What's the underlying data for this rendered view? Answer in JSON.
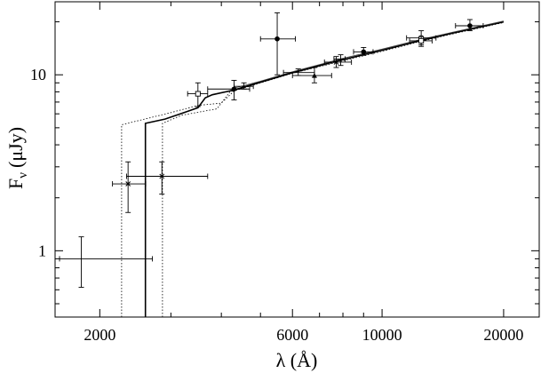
{
  "chart_data": {
    "type": "scatter",
    "xlabel": "λ (Å)",
    "ylabel": "F",
    "ylabel_sub": "ν",
    "ylabel_unit": "(μJy)",
    "x_scale": "log",
    "y_scale": "log",
    "xlim": [
      1550,
      24500
    ],
    "ylim": [
      0.42,
      26
    ],
    "xticks": [
      2000,
      6000,
      10000,
      20000
    ],
    "xtick_labels": [
      "2000",
      "6000",
      "10000",
      "20000"
    ],
    "yticks": [
      1,
      10
    ],
    "ytick_labels": [
      "1",
      "10"
    ],
    "grid": false,
    "points": [
      {
        "marker": "none",
        "x": 1800,
        "y": 0.9,
        "xerr": [
          1590,
          2700
        ],
        "yerr": [
          0.62,
          1.2
        ]
      },
      {
        "marker": "cross",
        "x": 2350,
        "y": 2.4,
        "xerr": [
          2150,
          2600
        ],
        "yerr": [
          1.65,
          3.2
        ]
      },
      {
        "marker": "cross",
        "x": 2850,
        "y": 2.65,
        "xerr": [
          2330,
          3700
        ],
        "yerr": [
          2.1,
          3.2
        ]
      },
      {
        "marker": "square",
        "x": 3500,
        "y": 7.8,
        "xerr": [
          3300,
          3700
        ],
        "yerr": [
          6.6,
          9.0
        ]
      },
      {
        "marker": "filled",
        "x": 4300,
        "y": 8.3,
        "xerr": [
          3700,
          4700
        ],
        "yerr": [
          7.2,
          9.3
        ]
      },
      {
        "marker": "none",
        "x": 4550,
        "y": 8.6,
        "xerr": [
          4300,
          4800
        ],
        "yerr": [
          8.3,
          9.0
        ]
      },
      {
        "marker": "filled",
        "x": 5500,
        "y": 16.0,
        "xerr": [
          5000,
          6100
        ],
        "yerr": [
          10.0,
          22.5
        ]
      },
      {
        "marker": "none",
        "x": 6200,
        "y": 10.3,
        "xerr": [
          5700,
          6800
        ],
        "yerr": [
          9.9,
          10.8
        ]
      },
      {
        "marker": "triangle",
        "x": 6800,
        "y": 9.9,
        "xerr": [
          6000,
          7500
        ],
        "yerr": [
          9.0,
          11.0
        ]
      },
      {
        "marker": "cross",
        "x": 7700,
        "y": 11.8,
        "xerr": [
          7200,
          8400
        ],
        "yerr": [
          11.0,
          12.7
        ]
      },
      {
        "marker": "none",
        "x": 7900,
        "y": 12.3,
        "xerr": [
          7600,
          8100
        ],
        "yerr": [
          11.3,
          13.0
        ]
      },
      {
        "marker": "filled",
        "x": 9000,
        "y": 13.5,
        "xerr": [
          8500,
          9500
        ],
        "yerr": [
          12.9,
          14.3
        ]
      },
      {
        "marker": "circle",
        "x": 12500,
        "y": 16.2,
        "xerr": [
          11500,
          13600
        ],
        "yerr": [
          14.5,
          17.8
        ]
      },
      {
        "marker": "square",
        "x": 12500,
        "y": 15.6,
        "xerr": [
          11700,
          13300
        ],
        "yerr": [
          14.8,
          16.5
        ]
      },
      {
        "marker": "filled",
        "x": 16500,
        "y": 19.0,
        "xerr": [
          15200,
          17800
        ],
        "yerr": [
          17.8,
          20.6
        ]
      }
    ],
    "series": [
      {
        "style": "solid",
        "points": [
          [
            2595,
            0.42
          ],
          [
            2595,
            5.3
          ],
          [
            2900,
            5.6
          ],
          [
            3300,
            6.2
          ],
          [
            3500,
            6.5
          ],
          [
            3650,
            7.4
          ],
          [
            3800,
            7.7
          ],
          [
            4300,
            8.2
          ],
          [
            5000,
            9.1
          ],
          [
            6000,
            10.3
          ],
          [
            7000,
            11.3
          ],
          [
            8000,
            12.2
          ],
          [
            10000,
            13.8
          ],
          [
            12500,
            15.7
          ],
          [
            15000,
            17.3
          ],
          [
            20000,
            20.0
          ]
        ]
      },
      {
        "style": "dotted",
        "points": [
          [
            2265,
            0.42
          ],
          [
            2265,
            5.2
          ],
          [
            3000,
            6.1
          ],
          [
            3500,
            6.7
          ],
          [
            4000,
            6.9
          ],
          [
            4300,
            8.1
          ],
          [
            5000,
            9.0
          ],
          [
            6000,
            10.2
          ],
          [
            8000,
            12.0
          ],
          [
            10000,
            13.6
          ],
          [
            12500,
            15.5
          ],
          [
            15000,
            17.1
          ],
          [
            20000,
            19.8
          ]
        ]
      },
      {
        "style": "dotted",
        "points": [
          [
            2860,
            0.42
          ],
          [
            2860,
            5.3
          ],
          [
            3200,
            5.9
          ],
          [
            3600,
            6.2
          ],
          [
            3900,
            6.4
          ],
          [
            4200,
            8.0
          ],
          [
            5000,
            9.0
          ],
          [
            6000,
            10.2
          ],
          [
            8000,
            12.1
          ],
          [
            10000,
            13.7
          ],
          [
            12500,
            15.6
          ],
          [
            15000,
            17.2
          ],
          [
            20000,
            19.9
          ]
        ]
      },
      {
        "style": "thin",
        "points": [
          [
            4300,
            8.4
          ],
          [
            5000,
            9.2
          ],
          [
            6000,
            10.4
          ],
          [
            8000,
            12.4
          ],
          [
            10000,
            14.0
          ],
          [
            12500,
            15.9
          ],
          [
            15000,
            17.5
          ],
          [
            20000,
            20.2
          ]
        ]
      }
    ]
  }
}
